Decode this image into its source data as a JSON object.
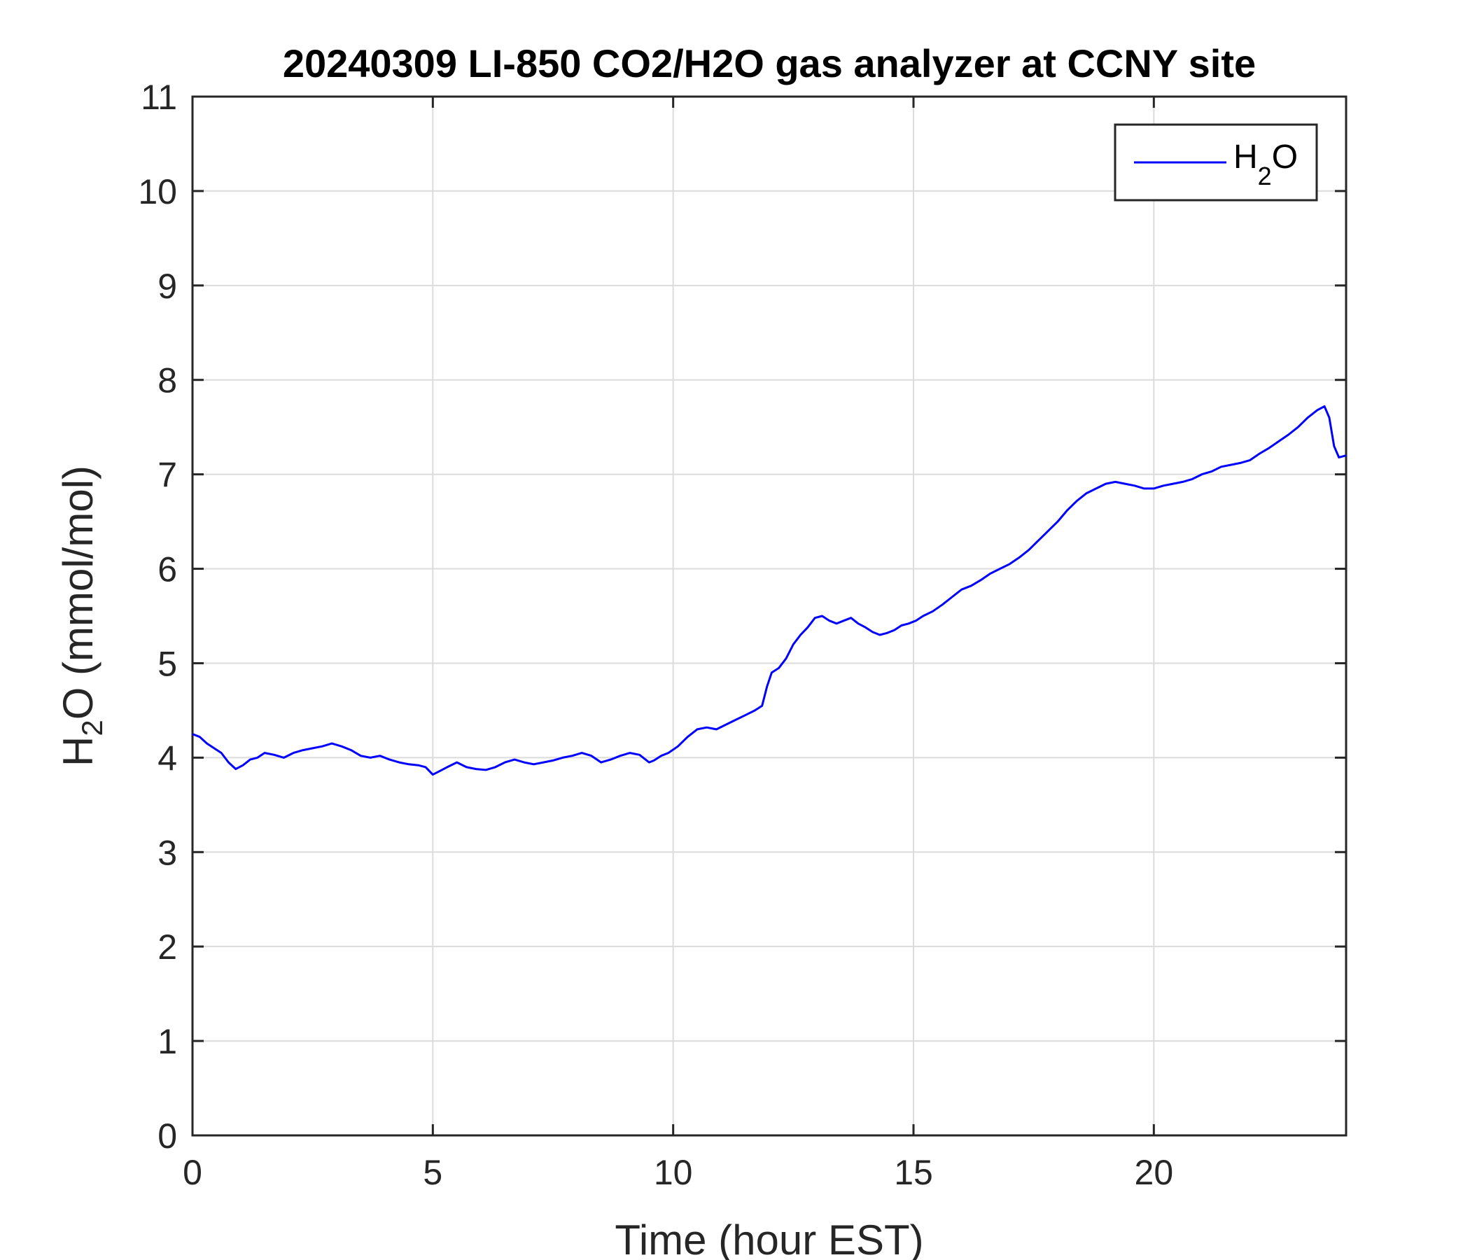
{
  "chart_data": {
    "type": "line",
    "title": "20240309 LI-850 CO2/H2O gas analyzer at CCNY site",
    "xlabel": "Time (hour EST)",
    "ylabel": {
      "base": "H",
      "sub": "2",
      "rest": "O (mmol/mol)"
    },
    "xlim": [
      0,
      24
    ],
    "ylim": [
      0,
      11
    ],
    "xticks": [
      0,
      5,
      10,
      15,
      20
    ],
    "yticks": [
      0,
      1,
      2,
      3,
      4,
      5,
      6,
      7,
      8,
      9,
      10,
      11
    ],
    "grid": true,
    "legend_position": "top-right",
    "series": [
      {
        "name": {
          "base": "H",
          "sub": "2",
          "rest": "O"
        },
        "color": "#0000ff",
        "x": [
          0,
          0.15,
          0.3,
          0.45,
          0.6,
          0.75,
          0.9,
          1.05,
          1.2,
          1.35,
          1.5,
          1.7,
          1.9,
          2.1,
          2.3,
          2.5,
          2.7,
          2.9,
          3.1,
          3.3,
          3.5,
          3.7,
          3.9,
          4.1,
          4.3,
          4.5,
          4.7,
          4.85,
          5.0,
          5.15,
          5.3,
          5.5,
          5.7,
          5.9,
          6.1,
          6.3,
          6.5,
          6.7,
          6.9,
          7.1,
          7.3,
          7.5,
          7.7,
          7.9,
          8.1,
          8.3,
          8.5,
          8.7,
          8.9,
          9.1,
          9.3,
          9.5,
          9.6,
          9.75,
          9.9,
          10.1,
          10.3,
          10.5,
          10.7,
          10.9,
          11.1,
          11.3,
          11.5,
          11.7,
          11.85,
          11.95,
          12.05,
          12.2,
          12.35,
          12.5,
          12.65,
          12.8,
          12.95,
          13.1,
          13.25,
          13.4,
          13.55,
          13.7,
          13.85,
          14.0,
          14.15,
          14.3,
          14.45,
          14.6,
          14.75,
          14.9,
          15.05,
          15.2,
          15.4,
          15.6,
          15.8,
          16.0,
          16.2,
          16.4,
          16.6,
          16.8,
          17.0,
          17.2,
          17.4,
          17.6,
          17.8,
          18.0,
          18.2,
          18.4,
          18.6,
          18.8,
          19.0,
          19.2,
          19.4,
          19.6,
          19.8,
          20.0,
          20.2,
          20.4,
          20.6,
          20.8,
          21.0,
          21.2,
          21.4,
          21.6,
          21.8,
          22.0,
          22.2,
          22.4,
          22.6,
          22.8,
          23.0,
          23.2,
          23.4,
          23.55,
          23.65,
          23.75,
          23.85,
          24.0
        ],
        "y": [
          4.25,
          4.22,
          4.15,
          4.1,
          4.05,
          3.95,
          3.88,
          3.92,
          3.98,
          4.0,
          4.05,
          4.03,
          4.0,
          4.05,
          4.08,
          4.1,
          4.12,
          4.15,
          4.12,
          4.08,
          4.02,
          4.0,
          4.02,
          3.98,
          3.95,
          3.93,
          3.92,
          3.9,
          3.82,
          3.86,
          3.9,
          3.95,
          3.9,
          3.88,
          3.87,
          3.9,
          3.95,
          3.98,
          3.95,
          3.93,
          3.95,
          3.97,
          4.0,
          4.02,
          4.05,
          4.02,
          3.95,
          3.98,
          4.02,
          4.05,
          4.03,
          3.95,
          3.97,
          4.02,
          4.05,
          4.12,
          4.22,
          4.3,
          4.32,
          4.3,
          4.35,
          4.4,
          4.45,
          4.5,
          4.55,
          4.75,
          4.9,
          4.95,
          5.05,
          5.2,
          5.3,
          5.38,
          5.48,
          5.5,
          5.45,
          5.42,
          5.45,
          5.48,
          5.42,
          5.38,
          5.33,
          5.3,
          5.32,
          5.35,
          5.4,
          5.42,
          5.45,
          5.5,
          5.55,
          5.62,
          5.7,
          5.78,
          5.82,
          5.88,
          5.95,
          6.0,
          6.05,
          6.12,
          6.2,
          6.3,
          6.4,
          6.5,
          6.62,
          6.72,
          6.8,
          6.85,
          6.9,
          6.92,
          6.9,
          6.88,
          6.85,
          6.85,
          6.88,
          6.9,
          6.92,
          6.95,
          7.0,
          7.03,
          7.08,
          7.1,
          7.12,
          7.15,
          7.22,
          7.28,
          7.35,
          7.42,
          7.5,
          7.6,
          7.68,
          7.72,
          7.6,
          7.3,
          7.18,
          7.2
        ]
      }
    ]
  }
}
